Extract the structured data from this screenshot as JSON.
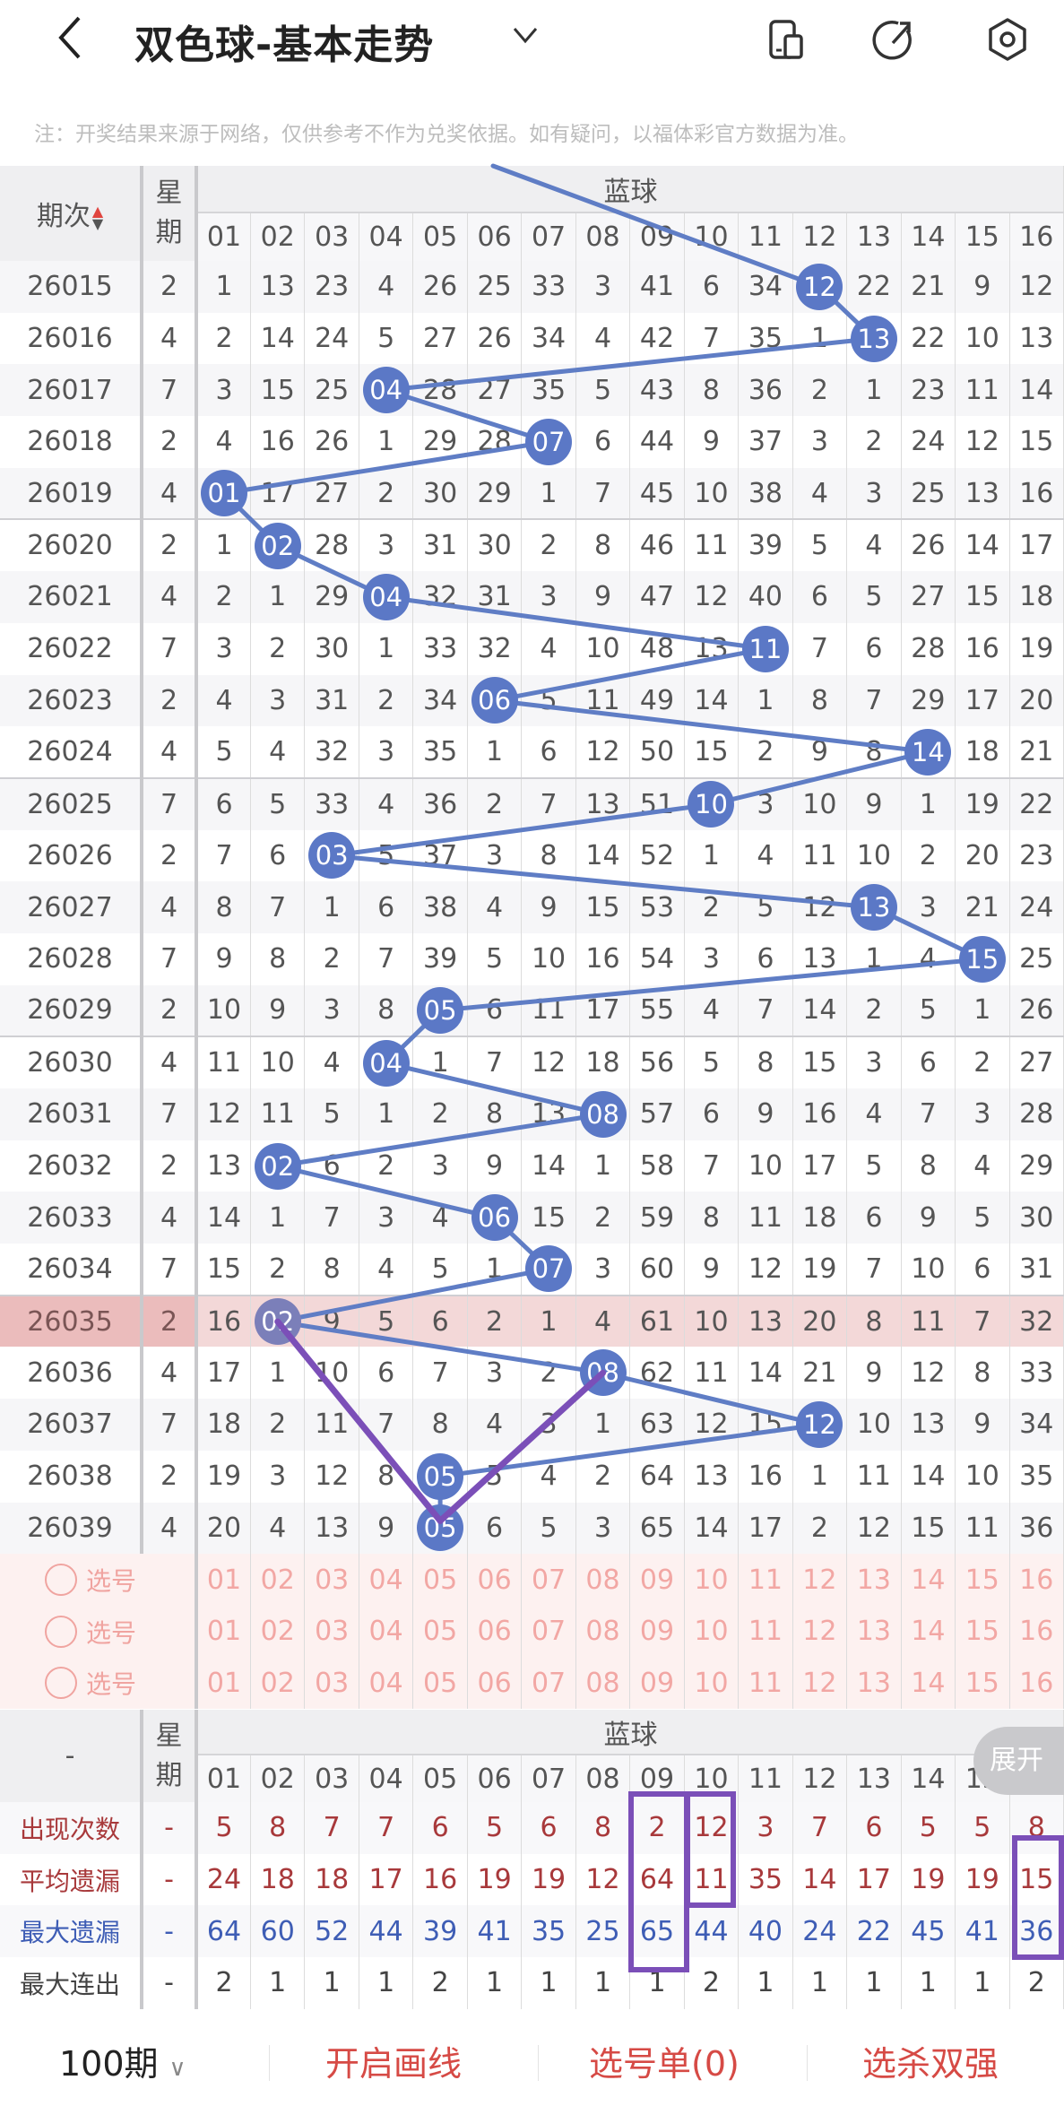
{
  "header": {
    "title": "双色球-基本走势",
    "icons": [
      "back-chevron-icon",
      "dropdown-chevron-icon",
      "device-icon",
      "share-icon",
      "settings-icon"
    ],
    "note": "注：开奖结果来源于网络，仅供参考不作为兑奖依据。如有疑问，以福体彩官方数据为准。"
  },
  "colors": {
    "ball": "#5b78c6",
    "line": "#5f7dc5",
    "highlight_row": "#f3d8d8",
    "annotation": "#7b4fb8",
    "accent_red": "#d64a45"
  },
  "table": {
    "period_header": "期次",
    "sort_icon": "sort-up-down-icon",
    "weekday_header": "星期",
    "group_header": "蓝球",
    "columns": [
      "01",
      "02",
      "03",
      "04",
      "05",
      "06",
      "07",
      "08",
      "09",
      "10",
      "11",
      "12",
      "13",
      "14",
      "15",
      "16"
    ],
    "highlighted_period": "26035",
    "rows": [
      {
        "period": "26015",
        "weekday": "2",
        "cells": [
          "1",
          "13",
          "23",
          "4",
          "26",
          "25",
          "33",
          "3",
          "41",
          "6",
          "34",
          "12",
          "22",
          "21",
          "9",
          "12"
        ],
        "hit": 11
      },
      {
        "period": "26016",
        "weekday": "4",
        "cells": [
          "2",
          "14",
          "24",
          "5",
          "27",
          "26",
          "34",
          "4",
          "42",
          "7",
          "35",
          "1",
          "13",
          "22",
          "10",
          "13"
        ],
        "hit": 12
      },
      {
        "period": "26017",
        "weekday": "7",
        "cells": [
          "3",
          "15",
          "25",
          "04",
          "28",
          "27",
          "35",
          "5",
          "43",
          "8",
          "36",
          "2",
          "1",
          "23",
          "11",
          "14"
        ],
        "hit": 3
      },
      {
        "period": "26018",
        "weekday": "2",
        "cells": [
          "4",
          "16",
          "26",
          "1",
          "29",
          "28",
          "07",
          "6",
          "44",
          "9",
          "37",
          "3",
          "2",
          "24",
          "12",
          "15"
        ],
        "hit": 6
      },
      {
        "period": "26019",
        "weekday": "4",
        "cells": [
          "01",
          "17",
          "27",
          "2",
          "30",
          "29",
          "1",
          "7",
          "45",
          "10",
          "38",
          "4",
          "3",
          "25",
          "13",
          "16"
        ],
        "hit": 0
      },
      {
        "period": "26020",
        "weekday": "2",
        "cells": [
          "1",
          "02",
          "28",
          "3",
          "31",
          "30",
          "2",
          "8",
          "46",
          "11",
          "39",
          "5",
          "4",
          "26",
          "14",
          "17"
        ],
        "hit": 1
      },
      {
        "period": "26021",
        "weekday": "4",
        "cells": [
          "2",
          "1",
          "29",
          "04",
          "32",
          "31",
          "3",
          "9",
          "47",
          "12",
          "40",
          "6",
          "5",
          "27",
          "15",
          "18"
        ],
        "hit": 3
      },
      {
        "period": "26022",
        "weekday": "7",
        "cells": [
          "3",
          "2",
          "30",
          "1",
          "33",
          "32",
          "4",
          "10",
          "48",
          "13",
          "11",
          "7",
          "6",
          "28",
          "16",
          "19"
        ],
        "hit": 10
      },
      {
        "period": "26023",
        "weekday": "2",
        "cells": [
          "4",
          "3",
          "31",
          "2",
          "34",
          "06",
          "5",
          "11",
          "49",
          "14",
          "1",
          "8",
          "7",
          "29",
          "17",
          "20"
        ],
        "hit": 5
      },
      {
        "period": "26024",
        "weekday": "4",
        "cells": [
          "5",
          "4",
          "32",
          "3",
          "35",
          "1",
          "6",
          "12",
          "50",
          "15",
          "2",
          "9",
          "8",
          "14",
          "18",
          "21"
        ],
        "hit": 13
      },
      {
        "period": "26025",
        "weekday": "7",
        "cells": [
          "6",
          "5",
          "33",
          "4",
          "36",
          "2",
          "7",
          "13",
          "51",
          "10",
          "3",
          "10",
          "9",
          "1",
          "19",
          "22"
        ],
        "hit": 9
      },
      {
        "period": "26026",
        "weekday": "2",
        "cells": [
          "7",
          "6",
          "03",
          "5",
          "37",
          "3",
          "8",
          "14",
          "52",
          "1",
          "4",
          "11",
          "10",
          "2",
          "20",
          "23"
        ],
        "hit": 2
      },
      {
        "period": "26027",
        "weekday": "4",
        "cells": [
          "8",
          "7",
          "1",
          "6",
          "38",
          "4",
          "9",
          "15",
          "53",
          "2",
          "5",
          "12",
          "13",
          "3",
          "21",
          "24"
        ],
        "hit": 12
      },
      {
        "period": "26028",
        "weekday": "7",
        "cells": [
          "9",
          "8",
          "2",
          "7",
          "39",
          "5",
          "10",
          "16",
          "54",
          "3",
          "6",
          "13",
          "1",
          "4",
          "15",
          "25"
        ],
        "hit": 14
      },
      {
        "period": "26029",
        "weekday": "2",
        "cells": [
          "10",
          "9",
          "3",
          "8",
          "05",
          "6",
          "11",
          "17",
          "55",
          "4",
          "7",
          "14",
          "2",
          "5",
          "1",
          "26"
        ],
        "hit": 4
      },
      {
        "period": "26030",
        "weekday": "4",
        "cells": [
          "11",
          "10",
          "4",
          "04",
          "1",
          "7",
          "12",
          "18",
          "56",
          "5",
          "8",
          "15",
          "3",
          "6",
          "2",
          "27"
        ],
        "hit": 3
      },
      {
        "period": "26031",
        "weekday": "7",
        "cells": [
          "12",
          "11",
          "5",
          "1",
          "2",
          "8",
          "13",
          "08",
          "57",
          "6",
          "9",
          "16",
          "4",
          "7",
          "3",
          "28"
        ],
        "hit": 7
      },
      {
        "period": "26032",
        "weekday": "2",
        "cells": [
          "13",
          "02",
          "6",
          "2",
          "3",
          "9",
          "14",
          "1",
          "58",
          "7",
          "10",
          "17",
          "5",
          "8",
          "4",
          "29"
        ],
        "hit": 1
      },
      {
        "period": "26033",
        "weekday": "4",
        "cells": [
          "14",
          "1",
          "7",
          "3",
          "4",
          "06",
          "15",
          "2",
          "59",
          "8",
          "11",
          "18",
          "6",
          "9",
          "5",
          "30"
        ],
        "hit": 5
      },
      {
        "period": "26034",
        "weekday": "7",
        "cells": [
          "15",
          "2",
          "8",
          "4",
          "5",
          "1",
          "07",
          "3",
          "60",
          "9",
          "12",
          "19",
          "7",
          "10",
          "6",
          "31"
        ],
        "hit": 6
      },
      {
        "period": "26035",
        "weekday": "2",
        "cells": [
          "16",
          "02",
          "9",
          "5",
          "6",
          "2",
          "1",
          "4",
          "61",
          "10",
          "13",
          "20",
          "8",
          "11",
          "7",
          "32"
        ],
        "hit": 1
      },
      {
        "period": "26036",
        "weekday": "4",
        "cells": [
          "17",
          "1",
          "10",
          "6",
          "7",
          "3",
          "2",
          "08",
          "62",
          "11",
          "14",
          "21",
          "9",
          "12",
          "8",
          "33"
        ],
        "hit": 7
      },
      {
        "period": "26037",
        "weekday": "7",
        "cells": [
          "18",
          "2",
          "11",
          "7",
          "8",
          "4",
          "3",
          "1",
          "63",
          "12",
          "15",
          "12",
          "10",
          "13",
          "9",
          "34"
        ],
        "hit": 11
      },
      {
        "period": "26038",
        "weekday": "2",
        "cells": [
          "19",
          "3",
          "12",
          "8",
          "05",
          "5",
          "4",
          "2",
          "64",
          "13",
          "16",
          "1",
          "11",
          "14",
          "10",
          "35"
        ],
        "hit": 4
      },
      {
        "period": "26039",
        "weekday": "4",
        "cells": [
          "20",
          "4",
          "13",
          "9",
          "05",
          "6",
          "5",
          "3",
          "65",
          "14",
          "17",
          "2",
          "12",
          "15",
          "11",
          "36"
        ],
        "hit": 4
      }
    ],
    "select_label": "选号",
    "select_rows": 3
  },
  "stats": {
    "corner": "-",
    "weekday_header": "星期",
    "group_header": "蓝球",
    "expand_label": "展开",
    "rows": [
      {
        "label": "出现次数",
        "weekday": "-",
        "style": "red",
        "values": [
          "5",
          "8",
          "7",
          "7",
          "6",
          "5",
          "6",
          "8",
          "2",
          "12",
          "3",
          "7",
          "6",
          "5",
          "5",
          "8"
        ]
      },
      {
        "label": "平均遗漏",
        "weekday": "-",
        "style": "red",
        "values": [
          "24",
          "18",
          "18",
          "17",
          "16",
          "19",
          "19",
          "12",
          "64",
          "11",
          "35",
          "14",
          "17",
          "19",
          "19",
          "15"
        ]
      },
      {
        "label": "最大遗漏",
        "weekday": "-",
        "style": "blue",
        "values": [
          "64",
          "60",
          "52",
          "44",
          "39",
          "41",
          "35",
          "25",
          "65",
          "44",
          "40",
          "24",
          "22",
          "45",
          "41",
          "36"
        ]
      },
      {
        "label": "最大连出",
        "weekday": "-",
        "style": "dark",
        "values": [
          "2",
          "1",
          "1",
          "1",
          "2",
          "1",
          "1",
          "1",
          "1",
          "2",
          "1",
          "1",
          "1",
          "1",
          "1",
          "2"
        ]
      }
    ]
  },
  "bottom": {
    "period_select": "100期",
    "draw_line": "开启画线",
    "pick_list": "选号单(0)",
    "kill_pick": "选杀双强"
  }
}
